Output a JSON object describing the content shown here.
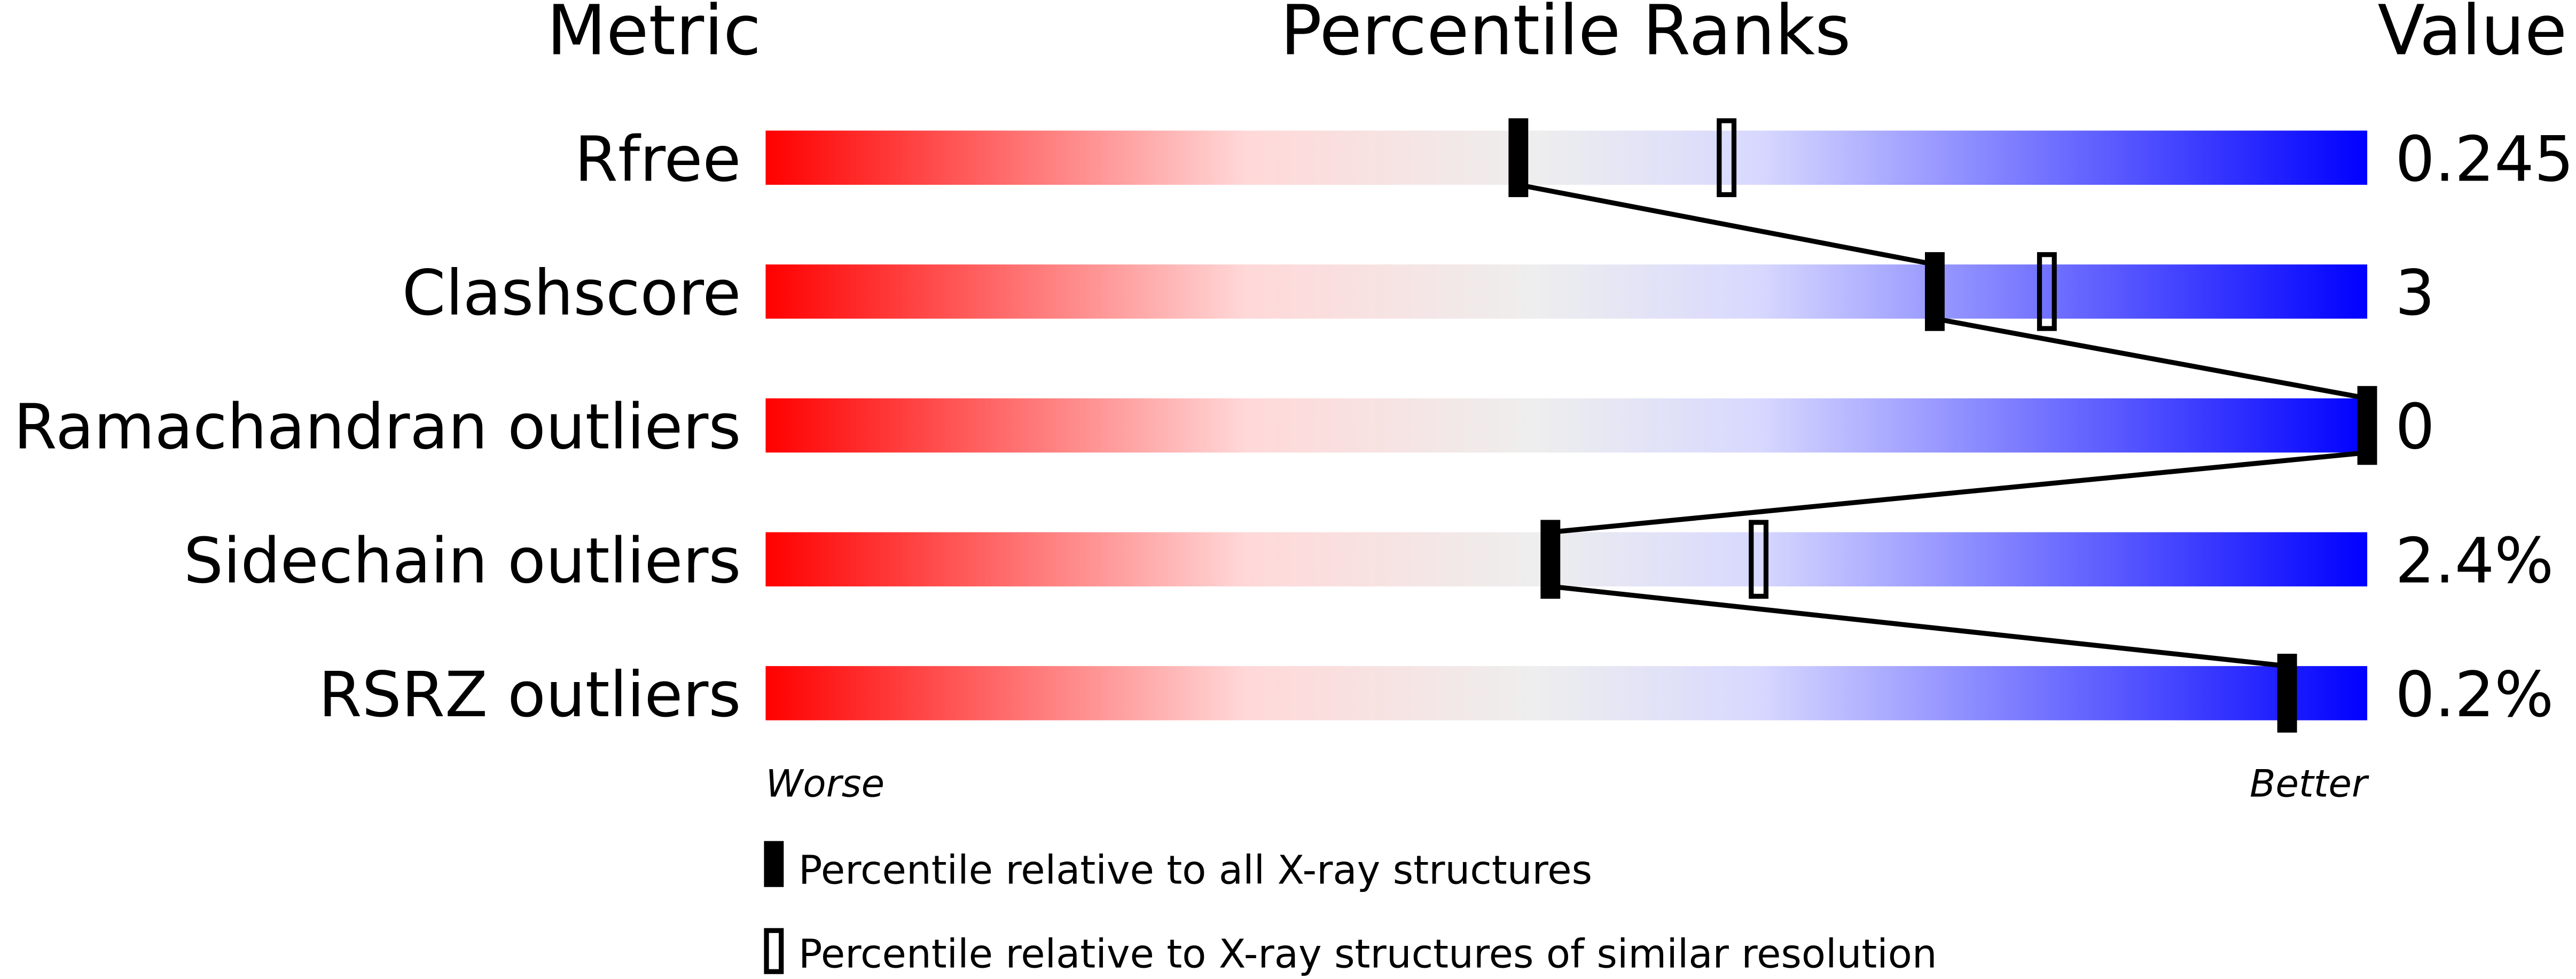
{
  "chart_data": {
    "type": "bar",
    "headers": {
      "metric": "Metric",
      "ranks": "Percentile Ranks",
      "value": "Value"
    },
    "metrics": [
      "Rfree",
      "Clashscore",
      "Ramachandran outliers",
      "Sidechain outliers",
      "RSRZ outliers"
    ],
    "values": [
      "0.245",
      "3",
      "0",
      "2.4%",
      "0.2%"
    ],
    "series": [
      {
        "name": "Percentile relative to all X-ray structures",
        "marker": "filled",
        "values": [
          47,
          73,
          100,
          49,
          95
        ]
      },
      {
        "name": "Percentile relative to X-ray structures of similar resolution",
        "marker": "open",
        "values": [
          60,
          80,
          null,
          62,
          null
        ]
      }
    ],
    "xlim": [
      0,
      100
    ],
    "axis_labels": {
      "left": "Worse",
      "right": "Better"
    },
    "gradient_colors": [
      "#ff0000",
      "#ffd8d8",
      "#eeeeee",
      "#d8d8ff",
      "#0000ff"
    ]
  }
}
